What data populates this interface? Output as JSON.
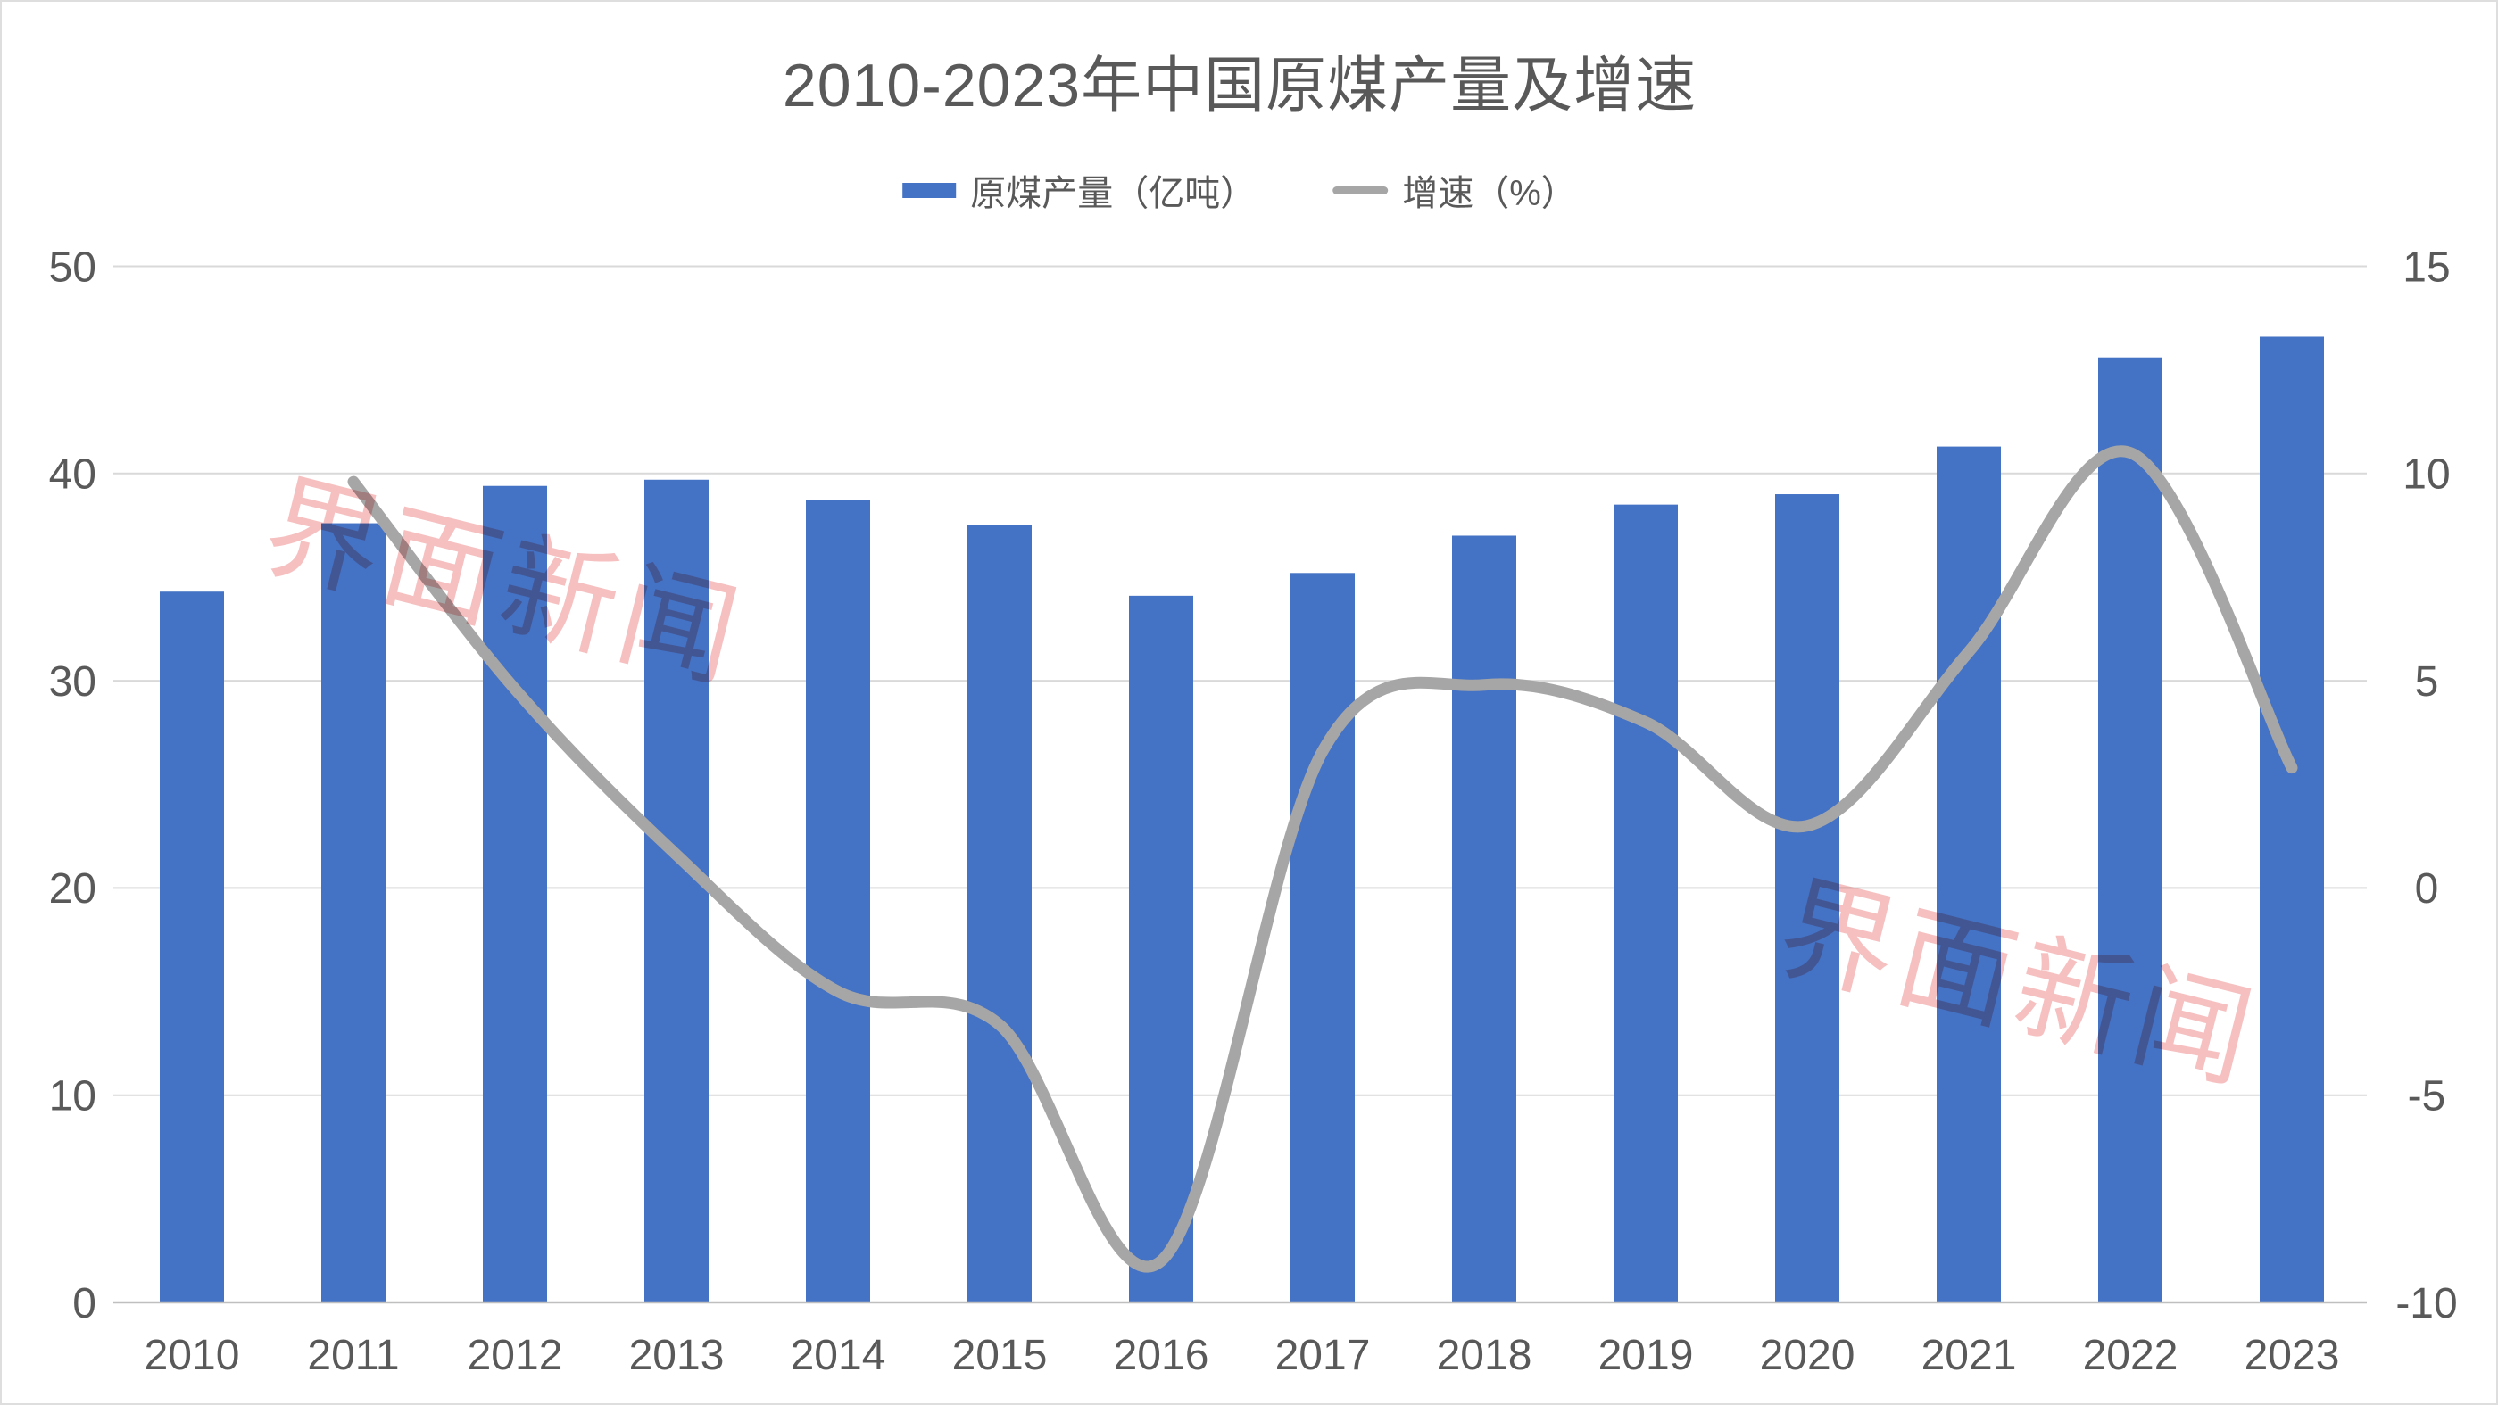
{
  "title": {
    "text": "2010-2023年中国原煤产量及增速"
  },
  "legend": {
    "items": [
      {
        "label": "原煤产量（亿吨）",
        "swatch": "bar-swatch"
      },
      {
        "label": "增速（%）",
        "swatch": "line-swatch"
      }
    ]
  },
  "watermark": {
    "text": "界面新闻"
  },
  "colors": {
    "bar": "#4472C4",
    "line": "#A6A6A6",
    "grid": "#D9D9D9",
    "axis_line": "#BFBFBF",
    "text": "#595959",
    "watermark": "#F6C0C1"
  },
  "chart_data": {
    "type": "bar",
    "title": "2010-2023年中国原煤产量及增速",
    "categories": [
      "2010",
      "2011",
      "2012",
      "2013",
      "2014",
      "2015",
      "2016",
      "2017",
      "2018",
      "2019",
      "2020",
      "2021",
      "2022",
      "2023"
    ],
    "series": [
      {
        "name": "原煤产量（亿吨）",
        "type": "bar",
        "axis": "left",
        "color": "#4472C4",
        "values": [
          34.3,
          37.6,
          39.4,
          39.7,
          38.7,
          37.5,
          34.1,
          35.2,
          37.0,
          38.5,
          39.0,
          41.3,
          45.6,
          46.6
        ]
      },
      {
        "name": "增速（%）",
        "type": "line",
        "axis": "right",
        "color": "#A6A6A6",
        "smoothed": true,
        "values": [
          null,
          9.8,
          4.8,
          0.8,
          -2.5,
          -3.3,
          -9.0,
          3.3,
          4.9,
          4.0,
          1.5,
          5.7,
          10.5,
          2.9
        ]
      }
    ],
    "left_axis": {
      "min": 0,
      "max": 50,
      "ticks": [
        0,
        10,
        20,
        30,
        40,
        50
      ]
    },
    "right_axis": {
      "min": -10,
      "max": 15,
      "ticks": [
        -10,
        -5,
        0,
        5,
        10,
        15
      ]
    },
    "grid": true,
    "legend_position": "top"
  }
}
